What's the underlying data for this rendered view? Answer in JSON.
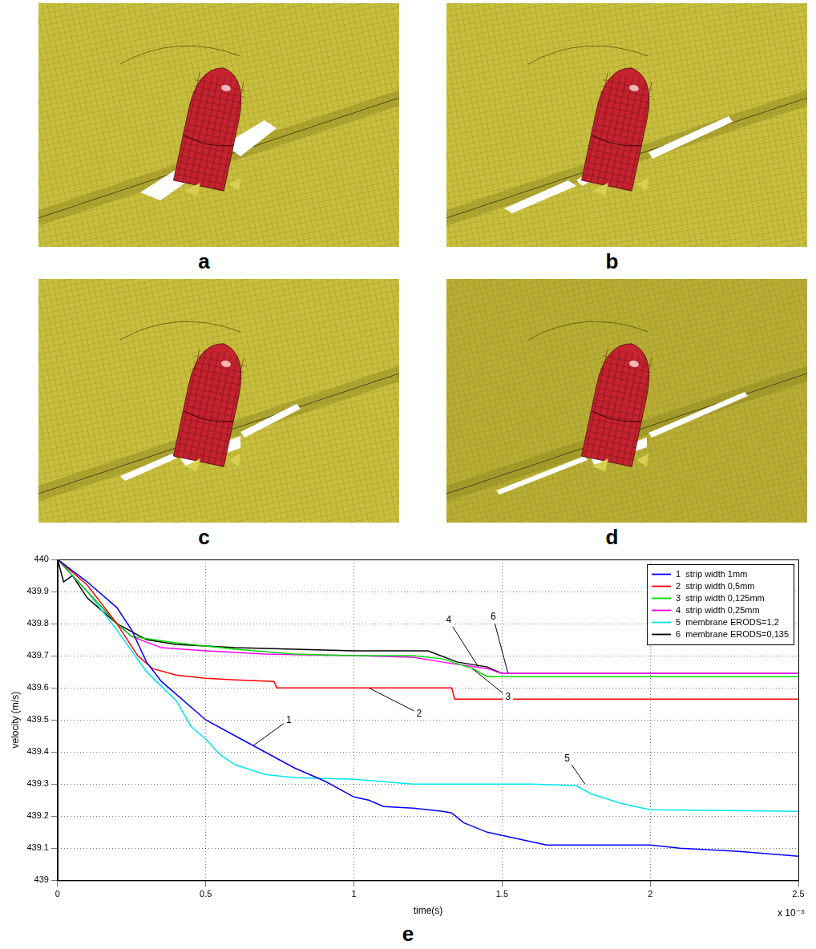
{
  "panel_labels": [
    "a",
    "b",
    "c",
    "d"
  ],
  "chart_data": {
    "type": "line",
    "panel_label": "e",
    "x_label": "time(s)",
    "y_label": "velocity (m/s)",
    "x_scale_label": "x 10⁻⁵",
    "xlim": [
      0,
      2.5
    ],
    "xticks": [
      0,
      0.5,
      1,
      1.5,
      2,
      2.5
    ],
    "ylim": [
      439,
      440
    ],
    "yticks": [
      439,
      439.1,
      439.2,
      439.3,
      439.4,
      439.5,
      439.6,
      439.7,
      439.8,
      439.9,
      440
    ],
    "grid": true,
    "legend": "upper right",
    "series": [
      {
        "name": "1  strip width 1mm",
        "color": "#0000ff",
        "x": [
          0,
          0.1,
          0.2,
          0.25,
          0.3,
          0.35,
          0.4,
          0.5,
          0.6,
          0.7,
          0.8,
          0.9,
          1.0,
          1.05,
          1.1,
          1.2,
          1.3,
          1.33,
          1.37,
          1.45,
          1.55,
          1.65,
          1.8,
          2.0,
          2.1,
          2.3,
          2.5
        ],
        "values": [
          440,
          439.93,
          439.85,
          439.78,
          439.68,
          439.62,
          439.58,
          439.5,
          439.45,
          439.4,
          439.35,
          439.31,
          439.26,
          439.25,
          439.23,
          439.225,
          439.215,
          439.21,
          439.18,
          439.15,
          439.13,
          439.11,
          439.11,
          439.11,
          439.1,
          439.09,
          439.075
        ]
      },
      {
        "name": "2  strip width 0,5mm",
        "color": "#ff0000",
        "x": [
          0,
          0.1,
          0.2,
          0.27,
          0.32,
          0.4,
          0.5,
          0.6,
          0.73,
          0.74,
          1.0,
          1.33,
          1.34,
          2.5
        ],
        "values": [
          440,
          439.92,
          439.8,
          439.7,
          439.66,
          439.64,
          439.63,
          439.625,
          439.62,
          439.6,
          439.6,
          439.6,
          439.565,
          439.565
        ]
      },
      {
        "name": "3  strip width 0,125mm",
        "color": "#00dd00",
        "x": [
          0,
          0.1,
          0.2,
          0.25,
          0.4,
          0.5,
          0.6,
          0.8,
          1.0,
          1.2,
          1.3,
          1.4,
          1.45,
          2.5
        ],
        "values": [
          440,
          439.9,
          439.8,
          439.76,
          439.74,
          439.73,
          439.72,
          439.705,
          439.7,
          439.7,
          439.69,
          439.66,
          439.635,
          439.635
        ]
      },
      {
        "name": "4  strip width 0,25mm",
        "color": "#ff00ff",
        "x": [
          0,
          0.1,
          0.2,
          0.25,
          0.35,
          0.5,
          0.7,
          1.0,
          1.2,
          1.3,
          1.45,
          1.5,
          2.5
        ],
        "values": [
          440,
          439.9,
          439.8,
          439.76,
          439.725,
          439.715,
          439.705,
          439.7,
          439.695,
          439.68,
          439.66,
          439.645,
          439.645
        ]
      },
      {
        "name": "5  membrane ERODS=1,2",
        "color": "#00e5ee",
        "x": [
          0,
          0.1,
          0.2,
          0.3,
          0.4,
          0.45,
          0.5,
          0.55,
          0.6,
          0.7,
          0.8,
          1.0,
          1.2,
          1.4,
          1.6,
          1.75,
          1.8,
          1.9,
          2.0,
          2.5
        ],
        "values": [
          440,
          439.9,
          439.78,
          439.65,
          439.56,
          439.48,
          439.44,
          439.39,
          439.36,
          439.33,
          439.32,
          439.315,
          439.3,
          439.3,
          439.3,
          439.295,
          439.27,
          439.24,
          439.22,
          439.215
        ]
      },
      {
        "name": "6  membrane ERODS=0,135",
        "color": "#000000",
        "x": [
          0,
          0.02,
          0.05,
          0.1,
          0.15,
          0.2,
          0.3,
          0.4,
          0.5,
          0.6,
          0.8,
          1.0,
          1.25,
          1.35,
          1.45,
          1.5,
          2.5
        ],
        "values": [
          440,
          439.93,
          439.95,
          439.88,
          439.84,
          439.8,
          439.75,
          439.735,
          439.73,
          439.725,
          439.72,
          439.715,
          439.715,
          439.68,
          439.665,
          439.645,
          439.645
        ]
      }
    ],
    "callouts": [
      {
        "text": "1",
        "x": 0.78,
        "y": 439.5,
        "target_x": 0.66,
        "target_y": 439.42
      },
      {
        "text": "2",
        "x": 1.22,
        "y": 439.52,
        "target_x": 1.05,
        "target_y": 439.6
      },
      {
        "text": "3",
        "x": 1.52,
        "y": 439.57,
        "target_x": 1.4,
        "target_y": 439.66
      },
      {
        "text": "4",
        "x": 1.32,
        "y": 439.81,
        "target_x": 1.42,
        "target_y": 439.665
      },
      {
        "text": "6",
        "x": 1.47,
        "y": 439.82,
        "target_x": 1.52,
        "target_y": 439.645
      },
      {
        "text": "5",
        "x": 1.72,
        "y": 439.38,
        "target_x": 1.78,
        "target_y": 439.3
      }
    ]
  }
}
